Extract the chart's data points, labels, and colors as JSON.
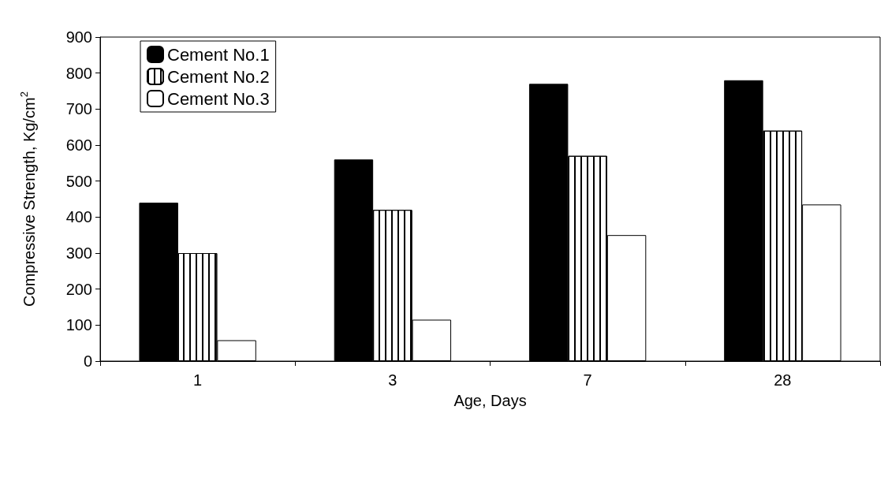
{
  "chart_data": {
    "type": "bar",
    "xlabel": "Age, Days",
    "ylabel": "Compressive Strength, Kg/cm$^{2}$",
    "categories": [
      "1",
      "3",
      "7",
      "28"
    ],
    "series": [
      {
        "name": "Cement No.1",
        "color": "#000000",
        "values": [
          440,
          560,
          770,
          780
        ]
      },
      {
        "name": "Cement No.2",
        "color": "#ffffff",
        "values": [
          300,
          420,
          570,
          640
        ]
      },
      {
        "name": "Cement No.3",
        "color": "#ffffff",
        "values": [
          58,
          115,
          350,
          435
        ]
      }
    ],
    "ylim": [
      0,
      900
    ],
    "yticks": [
      0,
      100,
      200,
      300,
      400,
      500,
      600,
      700,
      800,
      900
    ],
    "grid": false,
    "legend": "top left"
  }
}
